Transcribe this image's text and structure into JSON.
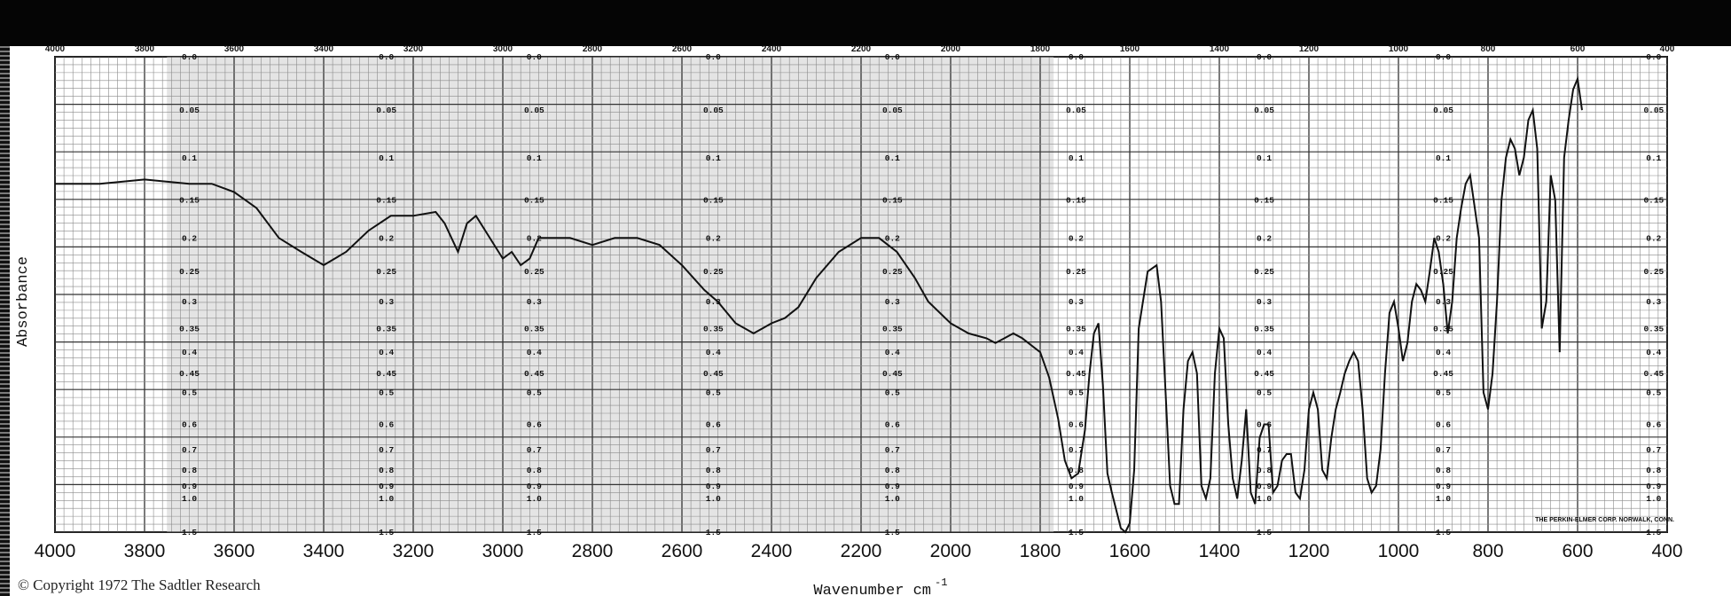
{
  "chart_data": {
    "type": "line",
    "title": "",
    "xlabel": "Wavenumber cm",
    "xlabel_superscript": "-1",
    "ylabel": "Absorbance",
    "x_reversed": true,
    "xlim": [
      4000,
      400
    ],
    "ylim_absorbance": [
      0.0,
      1.5
    ],
    "grid": true,
    "top_ticks": [
      "4000",
      "3800",
      "3600",
      "3400",
      "3200",
      "3000",
      "2800",
      "2600",
      "2400",
      "2200",
      "2000",
      "1800",
      "1600",
      "1400",
      "1200",
      "1000",
      "800",
      "600",
      "400"
    ],
    "bottom_ticks": [
      "4000",
      "3800",
      "3600",
      "3400",
      "3200",
      "3000",
      "2800",
      "2600",
      "2400",
      "2200",
      "2000",
      "1800",
      "1600",
      "1400",
      "1200",
      "1000",
      "800",
      "600",
      "400"
    ],
    "absorbance_ticks": [
      "0.0",
      "0.05",
      "0.1",
      "0.15",
      "0.2",
      "0.25",
      "0.3",
      "0.35",
      "0.4",
      "0.45",
      "0.5",
      "0.6",
      "0.7",
      "0.8",
      "0.9",
      "1.0",
      "1.5"
    ],
    "series": [
      {
        "x": [
          4000,
          3900,
          3800,
          3700,
          3650,
          3600,
          3550,
          3500,
          3450,
          3400,
          3350,
          3300,
          3250,
          3200,
          3150,
          3130,
          3100,
          3080,
          3060,
          3000,
          2980,
          2960,
          2940,
          2920,
          2880,
          2850,
          2800,
          2750,
          2700,
          2650,
          2600,
          2550,
          2520,
          2480,
          2440,
          2420,
          2400,
          2370,
          2340,
          2300,
          2250,
          2200,
          2160,
          2120,
          2080,
          2050,
          2000,
          1960,
          1920,
          1900,
          1880,
          1860,
          1840,
          1800,
          1780,
          1760,
          1745,
          1730,
          1715,
          1700,
          1690,
          1680,
          1670,
          1660,
          1650,
          1640,
          1620,
          1610,
          1600,
          1590,
          1580,
          1560,
          1540,
          1530,
          1520,
          1510,
          1500,
          1490,
          1480,
          1470,
          1460,
          1450,
          1440,
          1430,
          1420,
          1410,
          1400,
          1390,
          1380,
          1370,
          1360,
          1350,
          1340,
          1330,
          1320,
          1310,
          1300,
          1290,
          1280,
          1270,
          1260,
          1250,
          1240,
          1230,
          1220,
          1210,
          1200,
          1190,
          1180,
          1170,
          1160,
          1150,
          1140,
          1130,
          1120,
          1110,
          1100,
          1090,
          1080,
          1070,
          1060,
          1050,
          1040,
          1030,
          1020,
          1010,
          1000,
          990,
          980,
          970,
          960,
          950,
          940,
          930,
          920,
          910,
          900,
          890,
          880,
          870,
          860,
          850,
          840,
          820,
          810,
          800,
          790,
          780,
          770,
          760,
          750,
          740,
          730,
          720,
          710,
          700,
          690,
          680,
          670,
          660,
          650,
          640,
          630,
          620,
          610,
          600,
          590
        ],
        "absorbance": [
          0.13,
          0.13,
          0.125,
          0.13,
          0.13,
          0.14,
          0.16,
          0.2,
          0.22,
          0.24,
          0.22,
          0.19,
          0.17,
          0.17,
          0.165,
          0.18,
          0.22,
          0.18,
          0.17,
          0.23,
          0.22,
          0.24,
          0.23,
          0.2,
          0.2,
          0.2,
          0.21,
          0.2,
          0.2,
          0.21,
          0.24,
          0.28,
          0.3,
          0.34,
          0.36,
          0.35,
          0.34,
          0.33,
          0.31,
          0.26,
          0.22,
          0.2,
          0.2,
          0.22,
          0.26,
          0.3,
          0.34,
          0.36,
          0.37,
          0.38,
          0.37,
          0.36,
          0.37,
          0.4,
          0.46,
          0.58,
          0.75,
          0.85,
          0.82,
          0.62,
          0.45,
          0.36,
          0.34,
          0.48,
          0.82,
          0.95,
          1.4,
          1.5,
          1.3,
          0.8,
          0.35,
          0.25,
          0.24,
          0.3,
          0.5,
          0.9,
          1.05,
          1.05,
          0.55,
          0.42,
          0.4,
          0.45,
          0.9,
          1.0,
          0.85,
          0.45,
          0.35,
          0.37,
          0.6,
          0.85,
          1.0,
          0.75,
          0.55,
          0.95,
          1.05,
          0.65,
          0.6,
          0.6,
          0.95,
          0.9,
          0.75,
          0.72,
          0.72,
          0.95,
          1.0,
          0.8,
          0.55,
          0.5,
          0.55,
          0.8,
          0.85,
          0.65,
          0.55,
          0.5,
          0.45,
          0.42,
          0.4,
          0.42,
          0.55,
          0.85,
          0.95,
          0.9,
          0.7,
          0.45,
          0.32,
          0.3,
          0.35,
          0.42,
          0.38,
          0.3,
          0.27,
          0.28,
          0.3,
          0.25,
          0.2,
          0.22,
          0.27,
          0.36,
          0.3,
          0.2,
          0.16,
          0.13,
          0.12,
          0.2,
          0.5,
          0.55,
          0.45,
          0.3,
          0.15,
          0.1,
          0.08,
          0.09,
          0.12,
          0.1,
          0.06,
          0.05,
          0.09,
          0.35,
          0.3,
          0.12,
          0.15,
          0.4,
          0.1,
          0.06,
          0.03,
          0.02,
          0.05
        ]
      }
    ],
    "chart_footer_note": "THE PERKIN-ELMER CORP. NORWALK, CONN."
  },
  "copyright": "© Copyright 1972 The Sadtler Research"
}
